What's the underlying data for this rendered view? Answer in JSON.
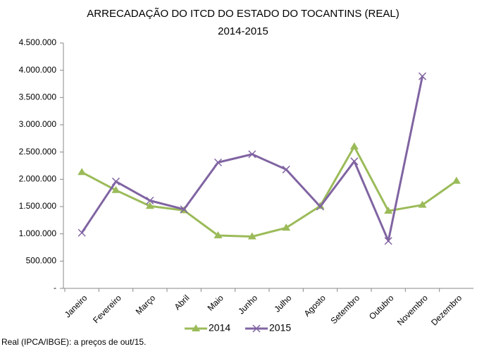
{
  "chart_data": {
    "type": "line",
    "title": "ARRECADAÇÃO DO ITCD DO ESTADO DO TOCANTINS  (REAL)",
    "subtitle": "2014-2015",
    "source": "Real (IPCA/IBGE): a preços de out/15.",
    "categories": [
      "Janeiro",
      "Fevereiro",
      "Março",
      "Abril",
      "Maio",
      "Junho",
      "Julho",
      "Agosto",
      "Setembro",
      "Outubro",
      "Novembro",
      "Dezembro"
    ],
    "series": [
      {
        "name": "2014",
        "color": "#9bbb59",
        "marker": "triangle",
        "values": [
          2130000,
          1800000,
          1510000,
          1430000,
          970000,
          950000,
          1110000,
          1510000,
          2600000,
          1420000,
          1530000,
          1970000
        ]
      },
      {
        "name": "2015",
        "color": "#8064a2",
        "marker": "x",
        "values": [
          1020000,
          1960000,
          1610000,
          1450000,
          2310000,
          2460000,
          2180000,
          1500000,
          2330000,
          870000,
          3890000,
          null
        ]
      }
    ],
    "ylim": [
      0,
      4500000
    ],
    "yticks": [
      {
        "value": 0,
        "label": "-"
      },
      {
        "value": 500000,
        "label": "500.000"
      },
      {
        "value": 1000000,
        "label": "1.000.000"
      },
      {
        "value": 1500000,
        "label": "1.500.000"
      },
      {
        "value": 2000000,
        "label": "2.000.000"
      },
      {
        "value": 2500000,
        "label": "2.500.000"
      },
      {
        "value": 3000000,
        "label": "3.000.000"
      },
      {
        "value": 3500000,
        "label": "3.500.000"
      },
      {
        "value": 4000000,
        "label": "4.000.000"
      },
      {
        "value": 4500000,
        "label": "4.500.000"
      }
    ],
    "grid": false,
    "legend": "bottom"
  }
}
